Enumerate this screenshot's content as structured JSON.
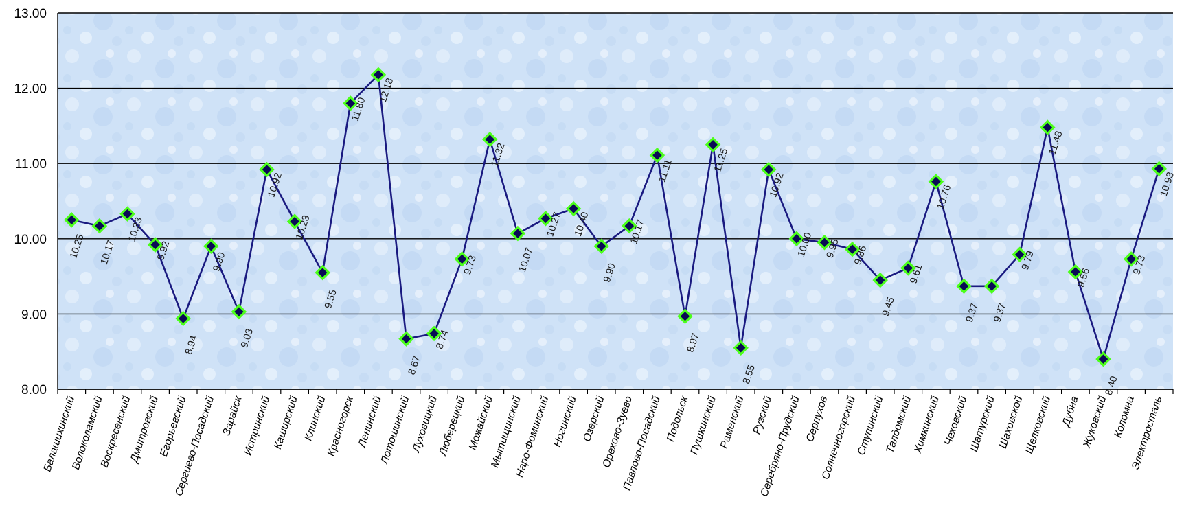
{
  "chart_data": {
    "type": "line",
    "title": "",
    "xlabel": "",
    "ylabel": "",
    "ylim": [
      8,
      13
    ],
    "yticks": [
      "8.00",
      "9.00",
      "10.00",
      "11.00",
      "12.00",
      "13.00"
    ],
    "grid": true,
    "legend": "none",
    "categories": [
      "Балашихинский",
      "Волоколамский",
      "Воскресенский",
      "Дмитровский",
      "Егорьевский",
      "Сергиево-Посадский",
      "Зарайск",
      "Истринский",
      "Каширский",
      "Клинский",
      "Красногорск",
      "Ленинский",
      "Лотошинский",
      "Луховицкий",
      "Люберецкий",
      "Можайский",
      "Мытищинский",
      "Наро-Фоминский",
      "Ногинский",
      "Озерский",
      "Орехово-Зуево",
      "Павлово-Посадский",
      "Подольск",
      "Пушкинский",
      "Раменский",
      "Рузский",
      "Серебряно-Прудский",
      "Серпухов",
      "Солнечногорский",
      "Ступинский",
      "Талдомский",
      "Химкинский",
      "Чеховский",
      "Шатурский",
      "Шаховской",
      "Щелковский",
      "Дубна",
      "Жуковский",
      "Коломна",
      "Электросталь"
    ],
    "series": [
      {
        "values": [
          10.25,
          10.17,
          10.33,
          9.92,
          8.94,
          9.9,
          9.03,
          10.92,
          10.23,
          9.55,
          11.8,
          12.18,
          8.67,
          8.74,
          9.73,
          11.32,
          10.07,
          10.27,
          10.4,
          9.9,
          10.17,
          11.11,
          8.97,
          11.25,
          8.55,
          10.92,
          10.0,
          9.95,
          9.86,
          9.45,
          9.61,
          10.76,
          9.37,
          9.37,
          9.79,
          11.48,
          9.56,
          8.4,
          9.73,
          10.93
        ],
        "data_labels": [
          "10.25",
          "10.17",
          "10.33",
          "9.92",
          "8.94",
          "9.90",
          "9.03",
          "10.92",
          "10.23",
          "9.55",
          "11.80",
          "12.18",
          "8.67",
          "8.74",
          "9.73",
          "11.32",
          "10.07",
          "10.27",
          "10.40",
          "9.90",
          "10.17",
          "11.11",
          "8.97",
          "11.25",
          "8.55",
          "10.92",
          "10.00",
          "9.95",
          "9.86",
          "9.45",
          "9.61",
          "10.76",
          "9.37",
          "9.37",
          "9.79",
          "11.48",
          "9.56",
          "8.40",
          "9.73",
          "10.93"
        ]
      }
    ],
    "colors": {
      "line": "#1a1a80",
      "marker_fill": "#0a0a55",
      "marker_edge": "#4cff1a",
      "grid": "#000000",
      "plot_bg": "#cfe2f7"
    }
  }
}
